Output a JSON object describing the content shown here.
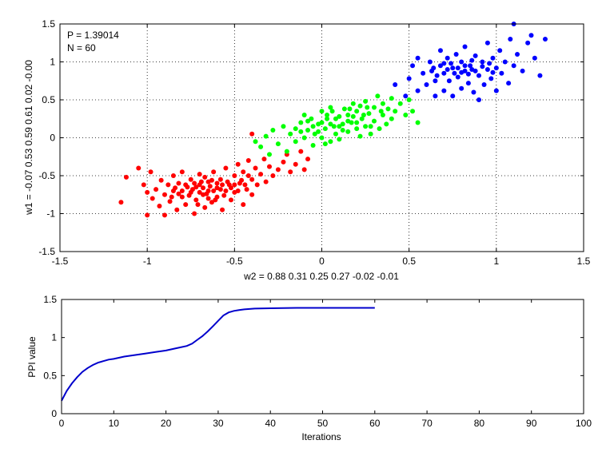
{
  "chart_data": [
    {
      "type": "scatter",
      "xlabel": "w2 = 0.88  0.31  0.25  0.27  -0.02  -0.01",
      "ylabel": "w1 = -0.07  0.53  0.59  0.61  0.02  -0.00",
      "xlim": [
        -1.5,
        1.5
      ],
      "ylim": [
        -1.5,
        1.5
      ],
      "xticks": [
        "-1.5",
        "-1",
        "-0.5",
        "0",
        "0.5",
        "1",
        "1.5"
      ],
      "yticks": [
        "-1.5",
        "-1",
        "-0.5",
        "0",
        "0.5",
        "1",
        "1.5"
      ],
      "grid": true,
      "annotations": [
        "P = 1.39014",
        "N = 60"
      ],
      "series": [
        {
          "color": "#ff0000",
          "points": [
            [
              -1.15,
              -0.85
            ],
            [
              -1.12,
              -0.52
            ],
            [
              -1.05,
              -0.4
            ],
            [
              -1.02,
              -0.62
            ],
            [
              -1.0,
              -0.72
            ],
            [
              -1.0,
              -1.02
            ],
            [
              -0.98,
              -0.45
            ],
            [
              -0.97,
              -0.8
            ],
            [
              -0.95,
              -0.68
            ],
            [
              -0.93,
              -0.9
            ],
            [
              -0.92,
              -0.56
            ],
            [
              -0.9,
              -0.75
            ],
            [
              -0.9,
              -1.02
            ],
            [
              -0.88,
              -0.62
            ],
            [
              -0.87,
              -0.84
            ],
            [
              -0.85,
              -0.5
            ],
            [
              -0.85,
              -0.7
            ],
            [
              -0.83,
              -0.95
            ],
            [
              -0.82,
              -0.6
            ],
            [
              -0.8,
              -0.78
            ],
            [
              -0.8,
              -0.45
            ],
            [
              -0.78,
              -0.88
            ],
            [
              -0.77,
              -0.65
            ],
            [
              -0.75,
              -0.55
            ],
            [
              -0.75,
              -0.72
            ],
            [
              -0.73,
              -1.0
            ],
            [
              -0.72,
              -0.82
            ],
            [
              -0.7,
              -0.62
            ],
            [
              -0.7,
              -0.48
            ],
            [
              -0.68,
              -0.75
            ],
            [
              -0.67,
              -0.92
            ],
            [
              -0.65,
              -0.58
            ],
            [
              -0.65,
              -0.7
            ],
            [
              -0.63,
              -0.85
            ],
            [
              -0.62,
              -0.45
            ],
            [
              -0.6,
              -0.66
            ],
            [
              -0.6,
              -0.78
            ],
            [
              -0.58,
              -0.55
            ],
            [
              -0.57,
              -0.95
            ],
            [
              -0.55,
              -0.7
            ],
            [
              -0.55,
              -0.4
            ],
            [
              -0.53,
              -0.62
            ],
            [
              -0.52,
              -0.82
            ],
            [
              -0.5,
              -0.5
            ],
            [
              -0.5,
              -0.72
            ],
            [
              -0.48,
              -0.35
            ],
            [
              -0.47,
              -0.6
            ],
            [
              -0.45,
              -0.88
            ],
            [
              -0.45,
              -0.45
            ],
            [
              -0.43,
              -0.68
            ],
            [
              -0.42,
              -0.3
            ],
            [
              -0.4,
              -0.55
            ],
            [
              -0.4,
              -0.75
            ],
            [
              -0.38,
              -0.4
            ],
            [
              -0.37,
              -0.62
            ],
            [
              -0.35,
              -0.48
            ],
            [
              -0.33,
              -0.28
            ],
            [
              -0.32,
              -0.58
            ],
            [
              -0.3,
              -0.38
            ],
            [
              -0.28,
              -0.5
            ],
            [
              -0.25,
              -0.42
            ],
            [
              -0.22,
              -0.32
            ],
            [
              -0.2,
              -0.22
            ],
            [
              -0.18,
              -0.45
            ],
            [
              -0.15,
              -0.35
            ],
            [
              -0.12,
              -0.18
            ],
            [
              -0.1,
              -0.42
            ],
            [
              -0.08,
              -0.28
            ],
            [
              -0.4,
              0.05
            ],
            [
              -0.72,
              -0.65
            ],
            [
              -0.7,
              -0.72
            ],
            [
              -0.68,
              -0.66
            ],
            [
              -0.66,
              -0.74
            ],
            [
              -0.64,
              -0.64
            ],
            [
              -0.74,
              -0.68
            ],
            [
              -0.76,
              -0.76
            ],
            [
              -0.62,
              -0.7
            ],
            [
              -0.6,
              -0.6
            ],
            [
              -0.58,
              -0.68
            ],
            [
              -0.56,
              -0.76
            ],
            [
              -0.78,
              -0.62
            ],
            [
              -0.8,
              -0.7
            ],
            [
              -0.82,
              -0.74
            ],
            [
              -0.84,
              -0.66
            ],
            [
              -0.86,
              -0.78
            ],
            [
              -0.54,
              -0.58
            ],
            [
              -0.52,
              -0.66
            ],
            [
              -0.5,
              -0.62
            ],
            [
              -0.48,
              -0.7
            ],
            [
              -0.46,
              -0.56
            ],
            [
              -0.44,
              -0.62
            ],
            [
              -0.42,
              -0.5
            ],
            [
              -0.73,
              -0.6
            ],
            [
              -0.69,
              -0.58
            ],
            [
              -0.65,
              -0.8
            ],
            [
              -0.61,
              -0.82
            ],
            [
              -0.57,
              -0.62
            ],
            [
              -0.71,
              -0.88
            ],
            [
              -0.67,
              -0.52
            ],
            [
              -0.63,
              -0.56
            ]
          ]
        },
        {
          "color": "#00ff00",
          "points": [
            [
              -0.38,
              -0.05
            ],
            [
              -0.35,
              -0.12
            ],
            [
              -0.32,
              0.02
            ],
            [
              -0.3,
              -0.22
            ],
            [
              -0.28,
              0.1
            ],
            [
              -0.25,
              -0.08
            ],
            [
              -0.22,
              0.15
            ],
            [
              -0.2,
              -0.18
            ],
            [
              -0.18,
              0.05
            ],
            [
              -0.15,
              0.12
            ],
            [
              -0.15,
              -0.05
            ],
            [
              -0.12,
              0.2
            ],
            [
              -0.1,
              0.0
            ],
            [
              -0.1,
              0.3
            ],
            [
              -0.08,
              0.1
            ],
            [
              -0.06,
              0.25
            ],
            [
              -0.05,
              -0.1
            ],
            [
              -0.04,
              0.05
            ],
            [
              -0.02,
              0.18
            ],
            [
              0.0,
              0.35
            ],
            [
              0.0,
              0.0
            ],
            [
              0.02,
              0.12
            ],
            [
              0.03,
              0.25
            ],
            [
              0.05,
              -0.05
            ],
            [
              0.05,
              0.4
            ],
            [
              0.07,
              0.15
            ],
            [
              0.08,
              0.05
            ],
            [
              0.1,
              0.28
            ],
            [
              0.1,
              -0.02
            ],
            [
              0.12,
              0.18
            ],
            [
              0.13,
              0.38
            ],
            [
              0.15,
              0.08
            ],
            [
              0.15,
              0.3
            ],
            [
              0.17,
              0.2
            ],
            [
              0.18,
              0.45
            ],
            [
              0.2,
              0.12
            ],
            [
              0.2,
              0.35
            ],
            [
              0.22,
              0.02
            ],
            [
              0.23,
              0.25
            ],
            [
              0.25,
              0.48
            ],
            [
              0.25,
              0.15
            ],
            [
              0.27,
              0.32
            ],
            [
              0.28,
              0.05
            ],
            [
              0.3,
              0.4
            ],
            [
              0.3,
              0.22
            ],
            [
              0.32,
              0.55
            ],
            [
              0.33,
              0.12
            ],
            [
              0.35,
              0.3
            ],
            [
              0.35,
              0.45
            ],
            [
              0.37,
              0.18
            ],
            [
              0.38,
              0.38
            ],
            [
              0.4,
              0.52
            ],
            [
              0.4,
              0.25
            ],
            [
              0.42,
              0.35
            ],
            [
              0.45,
              0.45
            ],
            [
              0.48,
              0.3
            ],
            [
              0.5,
              0.5
            ],
            [
              0.52,
              0.35
            ],
            [
              0.55,
              0.2
            ],
            [
              -0.05,
              0.15
            ],
            [
              0.0,
              0.2
            ],
            [
              0.05,
              0.18
            ],
            [
              0.1,
              0.15
            ],
            [
              0.15,
              0.22
            ],
            [
              0.2,
              0.2
            ],
            [
              0.08,
              0.25
            ],
            [
              0.12,
              0.1
            ],
            [
              -0.02,
              0.08
            ],
            [
              0.18,
              0.28
            ],
            [
              0.24,
              0.3
            ],
            [
              0.28,
              0.15
            ],
            [
              0.03,
              0.3
            ],
            [
              -0.08,
              0.22
            ],
            [
              0.16,
              0.38
            ],
            [
              0.22,
              0.42
            ],
            [
              0.06,
              0.35
            ],
            [
              -0.12,
              0.08
            ],
            [
              0.26,
              0.4
            ],
            [
              0.34,
              0.35
            ],
            [
              0.02,
              -0.08
            ]
          ]
        },
        {
          "color": "#0000ff",
          "points": [
            [
              0.42,
              0.7
            ],
            [
              0.48,
              0.55
            ],
            [
              0.5,
              0.78
            ],
            [
              0.52,
              0.95
            ],
            [
              0.55,
              0.62
            ],
            [
              0.55,
              1.05
            ],
            [
              0.58,
              0.85
            ],
            [
              0.6,
              0.7
            ],
            [
              0.62,
              1.0
            ],
            [
              0.63,
              0.88
            ],
            [
              0.65,
              0.55
            ],
            [
              0.65,
              0.75
            ],
            [
              0.68,
              0.95
            ],
            [
              0.68,
              1.15
            ],
            [
              0.7,
              0.62
            ],
            [
              0.7,
              0.85
            ],
            [
              0.72,
              1.05
            ],
            [
              0.73,
              0.75
            ],
            [
              0.75,
              0.92
            ],
            [
              0.75,
              0.55
            ],
            [
              0.77,
              1.1
            ],
            [
              0.78,
              0.8
            ],
            [
              0.8,
              0.65
            ],
            [
              0.8,
              1.0
            ],
            [
              0.82,
              0.88
            ],
            [
              0.82,
              1.2
            ],
            [
              0.84,
              0.72
            ],
            [
              0.85,
              0.95
            ],
            [
              0.87,
              0.6
            ],
            [
              0.88,
              1.08
            ],
            [
              0.9,
              0.82
            ],
            [
              0.9,
              0.5
            ],
            [
              0.92,
              1.0
            ],
            [
              0.93,
              0.7
            ],
            [
              0.95,
              0.9
            ],
            [
              0.95,
              1.25
            ],
            [
              0.97,
              0.78
            ],
            [
              0.98,
              1.05
            ],
            [
              1.0,
              0.62
            ],
            [
              1.0,
              0.92
            ],
            [
              1.02,
              1.15
            ],
            [
              1.03,
              0.85
            ],
            [
              1.05,
              1.0
            ],
            [
              1.07,
              0.72
            ],
            [
              1.08,
              1.3
            ],
            [
              1.1,
              1.5
            ],
            [
              1.1,
              0.95
            ],
            [
              1.12,
              1.1
            ],
            [
              1.15,
              0.88
            ],
            [
              1.18,
              1.25
            ],
            [
              1.2,
              1.35
            ],
            [
              1.22,
              1.05
            ],
            [
              1.25,
              0.82
            ],
            [
              1.28,
              1.3
            ],
            [
              0.78,
              0.92
            ],
            [
              0.82,
              0.95
            ],
            [
              0.86,
              0.9
            ],
            [
              0.76,
              0.85
            ],
            [
              0.84,
              0.84
            ],
            [
              0.8,
              0.86
            ],
            [
              0.88,
              0.88
            ],
            [
              0.74,
              0.98
            ],
            [
              0.92,
              0.94
            ],
            [
              0.72,
              0.9
            ],
            [
              0.96,
              0.98
            ],
            [
              0.66,
              0.82
            ],
            [
              0.98,
              0.86
            ],
            [
              0.7,
              0.98
            ],
            [
              0.86,
              1.02
            ],
            [
              0.64,
              0.92
            ]
          ]
        }
      ]
    },
    {
      "type": "line",
      "xlabel": "Iterations",
      "ylabel": "PPI value",
      "xlim": [
        0,
        100
      ],
      "ylim": [
        0,
        1.5
      ],
      "xticks": [
        "0",
        "10",
        "20",
        "30",
        "40",
        "50",
        "60",
        "70",
        "80",
        "90",
        "100"
      ],
      "yticks": [
        "0",
        "0.5",
        "1",
        "1.5"
      ],
      "grid": false,
      "series": [
        {
          "color": "#0000cc",
          "x": [
            0,
            1,
            2,
            3,
            4,
            5,
            6,
            7,
            8,
            9,
            10,
            12,
            14,
            16,
            18,
            20,
            22,
            24,
            25,
            26,
            27,
            28,
            29,
            30,
            31,
            32,
            33,
            34,
            35,
            37,
            40,
            45,
            50,
            55,
            60
          ],
          "y": [
            0.17,
            0.3,
            0.4,
            0.48,
            0.55,
            0.6,
            0.64,
            0.67,
            0.69,
            0.71,
            0.72,
            0.75,
            0.77,
            0.79,
            0.81,
            0.83,
            0.86,
            0.89,
            0.92,
            0.97,
            1.02,
            1.08,
            1.15,
            1.22,
            1.29,
            1.33,
            1.35,
            1.36,
            1.37,
            1.38,
            1.385,
            1.39,
            1.39,
            1.39,
            1.39
          ]
        }
      ]
    }
  ]
}
